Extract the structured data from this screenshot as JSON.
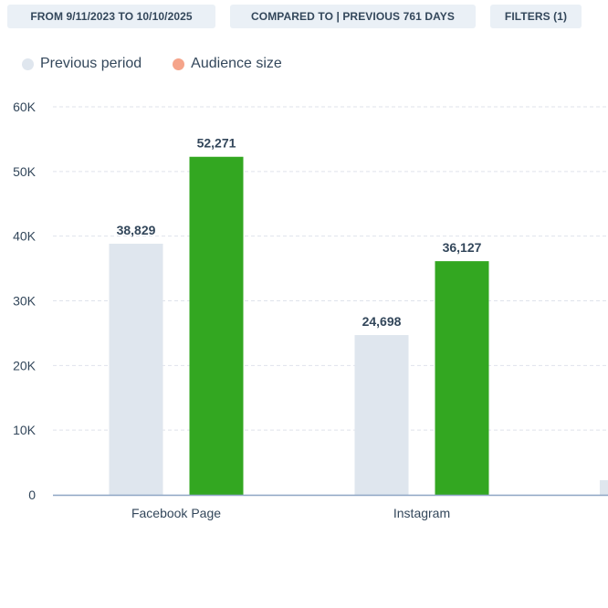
{
  "filters": {
    "date_range": "FROM 9/11/2023 TO 10/10/2025",
    "comparison": "COMPARED TO | PREVIOUS 761 DAYS",
    "filters_label": "FILTERS (1)"
  },
  "chart_data": {
    "type": "bar",
    "title": "",
    "xlabel": "",
    "ylabel": "",
    "ylim": [
      0,
      60000
    ],
    "yticks": [
      {
        "value": 0,
        "label": "0"
      },
      {
        "value": 10000,
        "label": "10K"
      },
      {
        "value": 20000,
        "label": "20K"
      },
      {
        "value": 30000,
        "label": "30K"
      },
      {
        "value": 40000,
        "label": "40K"
      },
      {
        "value": 50000,
        "label": "50K"
      },
      {
        "value": 60000,
        "label": "60K"
      }
    ],
    "grid": true,
    "legend_position": "top-left",
    "categories": [
      "Facebook Page",
      "Instagram"
    ],
    "series": [
      {
        "name": "Previous period",
        "color": "#dfe6ee",
        "values": [
          38829,
          24698
        ],
        "labels": [
          "38,829",
          "24,698"
        ]
      },
      {
        "name": "Audience size",
        "color": "#33a721",
        "legend_color": "#f5a48a",
        "values": [
          52271,
          36127
        ],
        "labels": [
          "52,271",
          "36,127"
        ]
      }
    ]
  }
}
